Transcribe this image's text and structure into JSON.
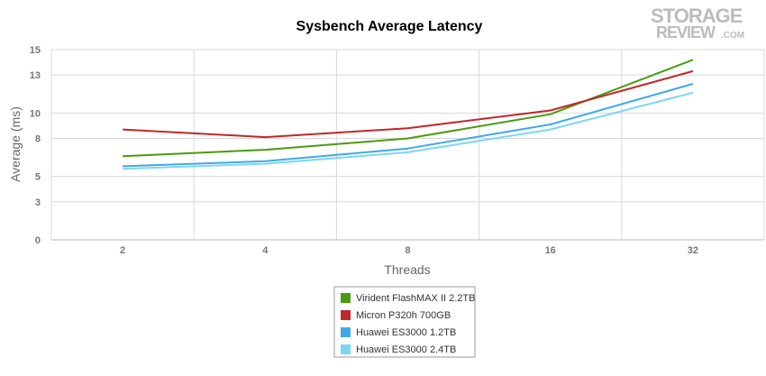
{
  "chart_data": {
    "type": "line",
    "title": "Sysbench Average Latency",
    "xlabel": "Threads",
    "ylabel": "Average (ms)",
    "categories": [
      "2",
      "4",
      "8",
      "16",
      "32"
    ],
    "y_ticks": [
      "0",
      "3",
      "5",
      "8",
      "10",
      "13",
      "15"
    ],
    "ylim": [
      0,
      15
    ],
    "grid": true,
    "legend_position": "bottom",
    "series": [
      {
        "name": "Virident FlashMAX II 2.2TB",
        "color": "#4b9a0f",
        "values": [
          6.6,
          7.1,
          8.0,
          9.9,
          14.2
        ]
      },
      {
        "name": "Micron P320h 700GB",
        "color": "#c0272d",
        "values": [
          8.7,
          8.1,
          8.8,
          10.2,
          13.3
        ]
      },
      {
        "name": "Huawei ES3000 1.2TB",
        "color": "#3fa9e8",
        "values": [
          5.8,
          6.2,
          7.2,
          9.1,
          12.3
        ]
      },
      {
        "name": "Huawei ES3000 2.4TB",
        "color": "#7dd6f3",
        "values": [
          5.6,
          6.0,
          6.9,
          8.7,
          11.6
        ]
      }
    ]
  },
  "watermark": {
    "line1": "STORAGE",
    "line2": "REVIEW",
    "suffix": ".COM"
  }
}
